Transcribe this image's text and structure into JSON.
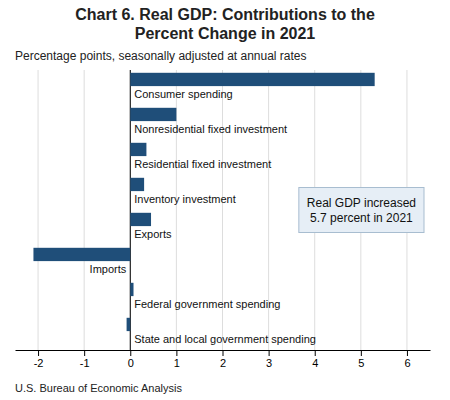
{
  "chart_data": {
    "type": "bar",
    "orientation": "horizontal",
    "title": "Chart 6. Real GDP: Contributions to the\nPercent Change in 2021",
    "subtitle": "Percentage points, seasonally adjusted at annual rates",
    "footer": "U.S. Bureau of Economic Analysis",
    "annotation": "Real GDP increased\n5.7 percent in 2021",
    "categories": [
      "Consumer spending",
      "Nonresidential fixed investment",
      "Residential fixed investment",
      "Inventory investment",
      "Exports",
      "Imports",
      "Federal government spending",
      "State and local government spending"
    ],
    "values": [
      5.3,
      1.0,
      0.35,
      0.3,
      0.45,
      -2.1,
      0.07,
      -0.08
    ],
    "color": "#1f4e79",
    "xlim": [
      -2.5,
      6.5
    ],
    "xticks": [
      -2,
      -1,
      0,
      1,
      2,
      3,
      4,
      5,
      6
    ],
    "grid": true,
    "tick_labels": "x"
  }
}
